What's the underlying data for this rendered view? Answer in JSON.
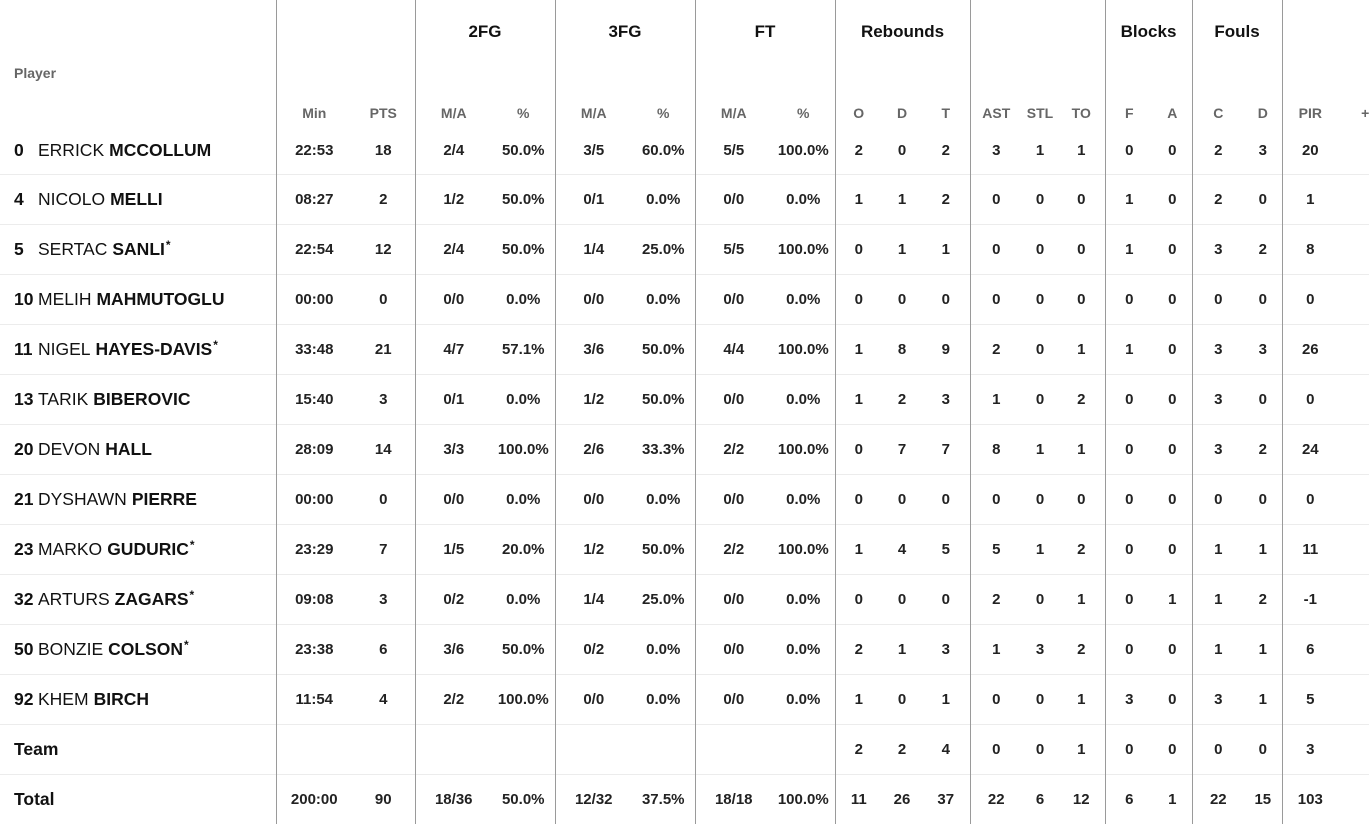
{
  "group_headers": {
    "fg2": "2FG",
    "fg3": "3FG",
    "ft": "FT",
    "rebounds": "Rebounds",
    "blocks": "Blocks",
    "fouls": "Fouls"
  },
  "sub_headers": {
    "player": "Player",
    "min": "Min",
    "pts": "PTS",
    "fg2_ma": "M/A",
    "fg2_pct": "%",
    "fg3_ma": "M/A",
    "fg3_pct": "%",
    "ft_ma": "M/A",
    "ft_pct": "%",
    "reb_o": "O",
    "reb_d": "D",
    "reb_t": "T",
    "ast": "AST",
    "stl": "STL",
    "to": "TO",
    "blk_f": "F",
    "blk_a": "A",
    "foul_c": "C",
    "foul_d": "D",
    "pir": "PIR",
    "pm": "+/-"
  },
  "starter_mark": "*",
  "players": [
    {
      "num": "0",
      "first": "ERRICK",
      "last": "MCCOLLUM",
      "starter": false,
      "min": "22:53",
      "pts": "18",
      "fg2_ma": "2/4",
      "fg2_pct": "50.0%",
      "fg3_ma": "3/5",
      "fg3_pct": "60.0%",
      "ft_ma": "5/5",
      "ft_pct": "100.0%",
      "reb_o": "2",
      "reb_d": "0",
      "reb_t": "2",
      "ast": "3",
      "stl": "1",
      "to": "1",
      "blk_f": "0",
      "blk_a": "0",
      "foul_c": "2",
      "foul_d": "3",
      "pir": "20"
    },
    {
      "num": "4",
      "first": "NICOLO",
      "last": "MELLI",
      "starter": false,
      "min": "08:27",
      "pts": "2",
      "fg2_ma": "1/2",
      "fg2_pct": "50.0%",
      "fg3_ma": "0/1",
      "fg3_pct": "0.0%",
      "ft_ma": "0/0",
      "ft_pct": "0.0%",
      "reb_o": "1",
      "reb_d": "1",
      "reb_t": "2",
      "ast": "0",
      "stl": "0",
      "to": "0",
      "blk_f": "1",
      "blk_a": "0",
      "foul_c": "2",
      "foul_d": "0",
      "pir": "1"
    },
    {
      "num": "5",
      "first": "SERTAC",
      "last": "SANLI",
      "starter": true,
      "min": "22:54",
      "pts": "12",
      "fg2_ma": "2/4",
      "fg2_pct": "50.0%",
      "fg3_ma": "1/4",
      "fg3_pct": "25.0%",
      "ft_ma": "5/5",
      "ft_pct": "100.0%",
      "reb_o": "0",
      "reb_d": "1",
      "reb_t": "1",
      "ast": "0",
      "stl": "0",
      "to": "0",
      "blk_f": "1",
      "blk_a": "0",
      "foul_c": "3",
      "foul_d": "2",
      "pir": "8"
    },
    {
      "num": "10",
      "first": "MELIH",
      "last": "MAHMUTOGLU",
      "starter": false,
      "min": "00:00",
      "pts": "0",
      "fg2_ma": "0/0",
      "fg2_pct": "0.0%",
      "fg3_ma": "0/0",
      "fg3_pct": "0.0%",
      "ft_ma": "0/0",
      "ft_pct": "0.0%",
      "reb_o": "0",
      "reb_d": "0",
      "reb_t": "0",
      "ast": "0",
      "stl": "0",
      "to": "0",
      "blk_f": "0",
      "blk_a": "0",
      "foul_c": "0",
      "foul_d": "0",
      "pir": "0"
    },
    {
      "num": "11",
      "first": "NIGEL",
      "last": "HAYES-DAVIS",
      "starter": true,
      "min": "33:48",
      "pts": "21",
      "fg2_ma": "4/7",
      "fg2_pct": "57.1%",
      "fg3_ma": "3/6",
      "fg3_pct": "50.0%",
      "ft_ma": "4/4",
      "ft_pct": "100.0%",
      "reb_o": "1",
      "reb_d": "8",
      "reb_t": "9",
      "ast": "2",
      "stl": "0",
      "to": "1",
      "blk_f": "1",
      "blk_a": "0",
      "foul_c": "3",
      "foul_d": "3",
      "pir": "26"
    },
    {
      "num": "13",
      "first": "TARIK",
      "last": "BIBEROVIC",
      "starter": false,
      "min": "15:40",
      "pts": "3",
      "fg2_ma": "0/1",
      "fg2_pct": "0.0%",
      "fg3_ma": "1/2",
      "fg3_pct": "50.0%",
      "ft_ma": "0/0",
      "ft_pct": "0.0%",
      "reb_o": "1",
      "reb_d": "2",
      "reb_t": "3",
      "ast": "1",
      "stl": "0",
      "to": "2",
      "blk_f": "0",
      "blk_a": "0",
      "foul_c": "3",
      "foul_d": "0",
      "pir": "0"
    },
    {
      "num": "20",
      "first": "DEVON",
      "last": "HALL",
      "starter": false,
      "min": "28:09",
      "pts": "14",
      "fg2_ma": "3/3",
      "fg2_pct": "100.0%",
      "fg3_ma": "2/6",
      "fg3_pct": "33.3%",
      "ft_ma": "2/2",
      "ft_pct": "100.0%",
      "reb_o": "0",
      "reb_d": "7",
      "reb_t": "7",
      "ast": "8",
      "stl": "1",
      "to": "1",
      "blk_f": "0",
      "blk_a": "0",
      "foul_c": "3",
      "foul_d": "2",
      "pir": "24"
    },
    {
      "num": "21",
      "first": "DYSHAWN",
      "last": "PIERRE",
      "starter": false,
      "min": "00:00",
      "pts": "0",
      "fg2_ma": "0/0",
      "fg2_pct": "0.0%",
      "fg3_ma": "0/0",
      "fg3_pct": "0.0%",
      "ft_ma": "0/0",
      "ft_pct": "0.0%",
      "reb_o": "0",
      "reb_d": "0",
      "reb_t": "0",
      "ast": "0",
      "stl": "0",
      "to": "0",
      "blk_f": "0",
      "blk_a": "0",
      "foul_c": "0",
      "foul_d": "0",
      "pir": "0"
    },
    {
      "num": "23",
      "first": "MARKO",
      "last": "GUDURIC",
      "starter": true,
      "min": "23:29",
      "pts": "7",
      "fg2_ma": "1/5",
      "fg2_pct": "20.0%",
      "fg3_ma": "1/2",
      "fg3_pct": "50.0%",
      "ft_ma": "2/2",
      "ft_pct": "100.0%",
      "reb_o": "1",
      "reb_d": "4",
      "reb_t": "5",
      "ast": "5",
      "stl": "1",
      "to": "2",
      "blk_f": "0",
      "blk_a": "0",
      "foul_c": "1",
      "foul_d": "1",
      "pir": "11"
    },
    {
      "num": "32",
      "first": "ARTURS",
      "last": "ZAGARS",
      "starter": true,
      "min": "09:08",
      "pts": "3",
      "fg2_ma": "0/2",
      "fg2_pct": "0.0%",
      "fg3_ma": "1/4",
      "fg3_pct": "25.0%",
      "ft_ma": "0/0",
      "ft_pct": "0.0%",
      "reb_o": "0",
      "reb_d": "0",
      "reb_t": "0",
      "ast": "2",
      "stl": "0",
      "to": "1",
      "blk_f": "0",
      "blk_a": "1",
      "foul_c": "1",
      "foul_d": "2",
      "pir": "-1"
    },
    {
      "num": "50",
      "first": "BONZIE",
      "last": "COLSON",
      "starter": true,
      "min": "23:38",
      "pts": "6",
      "fg2_ma": "3/6",
      "fg2_pct": "50.0%",
      "fg3_ma": "0/2",
      "fg3_pct": "0.0%",
      "ft_ma": "0/0",
      "ft_pct": "0.0%",
      "reb_o": "2",
      "reb_d": "1",
      "reb_t": "3",
      "ast": "1",
      "stl": "3",
      "to": "2",
      "blk_f": "0",
      "blk_a": "0",
      "foul_c": "1",
      "foul_d": "1",
      "pir": "6"
    },
    {
      "num": "92",
      "first": "KHEM",
      "last": "BIRCH",
      "starter": false,
      "min": "11:54",
      "pts": "4",
      "fg2_ma": "2/2",
      "fg2_pct": "100.0%",
      "fg3_ma": "0/0",
      "fg3_pct": "0.0%",
      "ft_ma": "0/0",
      "ft_pct": "0.0%",
      "reb_o": "1",
      "reb_d": "0",
      "reb_t": "1",
      "ast": "0",
      "stl": "0",
      "to": "1",
      "blk_f": "3",
      "blk_a": "0",
      "foul_c": "3",
      "foul_d": "1",
      "pir": "5"
    }
  ],
  "team": {
    "label": "Team",
    "min": "",
    "pts": "",
    "fg2_ma": "",
    "fg2_pct": "",
    "fg3_ma": "",
    "fg3_pct": "",
    "ft_ma": "",
    "ft_pct": "",
    "reb_o": "2",
    "reb_d": "2",
    "reb_t": "4",
    "ast": "0",
    "stl": "0",
    "to": "1",
    "blk_f": "0",
    "blk_a": "0",
    "foul_c": "0",
    "foul_d": "0",
    "pir": "3"
  },
  "total": {
    "label": "Total",
    "min": "200:00",
    "pts": "90",
    "fg2_ma": "18/36",
    "fg2_pct": "50.0%",
    "fg3_ma": "12/32",
    "fg3_pct": "37.5%",
    "ft_ma": "18/18",
    "ft_pct": "100.0%",
    "reb_o": "11",
    "reb_d": "26",
    "reb_t": "37",
    "ast": "22",
    "stl": "6",
    "to": "12",
    "blk_f": "6",
    "blk_a": "1",
    "foul_c": "22",
    "foul_d": "15",
    "pir": "103"
  }
}
